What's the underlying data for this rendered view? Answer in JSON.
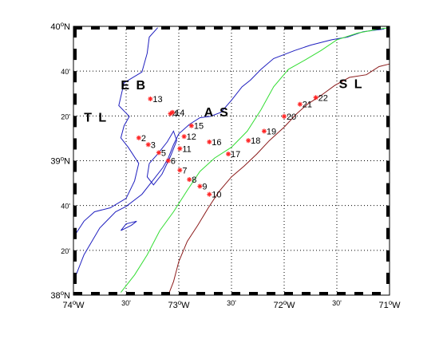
{
  "map": {
    "lon_range": [
      -74,
      -71
    ],
    "lat_range": [
      38,
      40
    ],
    "x_ticks": [
      {
        "lon": -74.0,
        "label": "74",
        "suffix": "W",
        "major": true
      },
      {
        "lon": -73.5,
        "label": "30'",
        "suffix": "",
        "major": false
      },
      {
        "lon": -73.0,
        "label": "73",
        "suffix": "W",
        "major": true
      },
      {
        "lon": -72.5,
        "label": "30'",
        "suffix": "",
        "major": false
      },
      {
        "lon": -72.0,
        "label": "72",
        "suffix": "W",
        "major": true
      },
      {
        "lon": -71.5,
        "label": "30'",
        "suffix": "",
        "major": false
      },
      {
        "lon": -71.0,
        "label": "71",
        "suffix": "W",
        "major": true
      }
    ],
    "y_ticks": [
      {
        "lat": 38.0,
        "label": "38",
        "suffix": "N",
        "major": true
      },
      {
        "lat": 38.3333,
        "label": "20'",
        "suffix": "",
        "major": false
      },
      {
        "lat": 38.6667,
        "label": "40'",
        "suffix": "",
        "major": false
      },
      {
        "lat": 39.0,
        "label": "39",
        "suffix": "N",
        "major": true
      },
      {
        "lat": 39.3333,
        "label": "20'",
        "suffix": "",
        "major": false
      },
      {
        "lat": 39.6667,
        "label": "40'",
        "suffix": "",
        "major": false
      },
      {
        "lat": 40.0,
        "label": "40",
        "suffix": "N",
        "major": true
      }
    ],
    "region_labels": [
      {
        "text": "E B",
        "lon": -73.55,
        "lat": 39.53
      },
      {
        "text": "T L",
        "lon": -73.9,
        "lat": 39.29
      },
      {
        "text": "A S",
        "lon": -72.76,
        "lat": 39.33
      },
      {
        "text": "S L",
        "lon": -71.48,
        "lat": 39.54
      }
    ],
    "stations": [
      {
        "id": "2",
        "lon": -73.38,
        "lat": 39.17
      },
      {
        "id": "3",
        "lon": -73.29,
        "lat": 39.12
      },
      {
        "id": "4",
        "lon": -73.08,
        "lat": 39.35
      },
      {
        "id": "5",
        "lon": -73.19,
        "lat": 39.06
      },
      {
        "id": "6",
        "lon": -73.1,
        "lat": 39.0
      },
      {
        "id": "7",
        "lon": -72.99,
        "lat": 38.93
      },
      {
        "id": "8",
        "lon": -72.9,
        "lat": 38.86
      },
      {
        "id": "9",
        "lon": -72.8,
        "lat": 38.81
      },
      {
        "id": "10",
        "lon": -72.71,
        "lat": 38.75
      },
      {
        "id": "11",
        "lon": -72.99,
        "lat": 39.09
      },
      {
        "id": "12",
        "lon": -72.95,
        "lat": 39.18
      },
      {
        "id": "13",
        "lon": -73.27,
        "lat": 39.46
      },
      {
        "id": "14",
        "lon": -73.06,
        "lat": 39.36
      },
      {
        "id": "15",
        "lon": -72.88,
        "lat": 39.26
      },
      {
        "id": "16",
        "lon": -72.71,
        "lat": 39.14
      },
      {
        "id": "17",
        "lon": -72.53,
        "lat": 39.05
      },
      {
        "id": "18",
        "lon": -72.34,
        "lat": 39.15
      },
      {
        "id": "19",
        "lon": -72.19,
        "lat": 39.22
      },
      {
        "id": "20",
        "lon": -72.0,
        "lat": 39.33
      },
      {
        "id": "21",
        "lon": -71.85,
        "lat": 39.42
      },
      {
        "id": "22",
        "lon": -71.7,
        "lat": 39.47
      }
    ],
    "blue_contour": [
      [
        -74.0,
        38.43
      ],
      [
        -73.9,
        38.55
      ],
      [
        -73.8,
        38.62
      ],
      [
        -73.65,
        38.65
      ],
      [
        -73.5,
        38.72
      ],
      [
        -73.42,
        38.85
      ],
      [
        -73.38,
        38.98
      ],
      [
        -73.48,
        39.1
      ],
      [
        -73.55,
        39.17
      ],
      [
        -73.52,
        39.26
      ],
      [
        -73.47,
        39.33
      ],
      [
        -73.57,
        39.41
      ],
      [
        -73.52,
        39.58
      ],
      [
        -73.35,
        39.66
      ],
      [
        -73.3,
        39.8
      ],
      [
        -73.28,
        39.92
      ],
      [
        -73.2,
        39.99
      ]
    ],
    "blue_contour_2": [
      [
        -73.1,
        39.02
      ],
      [
        -73.05,
        39.12
      ],
      [
        -73.0,
        39.2
      ],
      [
        -72.9,
        39.27
      ],
      [
        -72.8,
        39.32
      ],
      [
        -72.7,
        39.33
      ],
      [
        -72.6,
        39.36
      ],
      [
        -72.5,
        39.45
      ],
      [
        -72.4,
        39.55
      ],
      [
        -72.32,
        39.6
      ],
      [
        -72.22,
        39.68
      ],
      [
        -72.1,
        39.76
      ],
      [
        -71.9,
        39.82
      ],
      [
        -71.75,
        39.86
      ],
      [
        -71.55,
        39.9
      ],
      [
        -71.4,
        39.92
      ],
      [
        -71.25,
        39.96
      ],
      [
        -71.05,
        39.98
      ]
    ],
    "blue_loop": [
      [
        -73.28,
        38.98
      ],
      [
        -73.2,
        39.05
      ],
      [
        -73.11,
        39.14
      ],
      [
        -73.05,
        39.22
      ],
      [
        -73.02,
        39.15
      ],
      [
        -73.08,
        39.03
      ],
      [
        -73.16,
        38.9
      ],
      [
        -73.24,
        38.82
      ],
      [
        -73.3,
        38.88
      ],
      [
        -73.28,
        38.98
      ]
    ],
    "blue_small": [
      [
        -73.55,
        38.48
      ],
      [
        -73.45,
        38.52
      ],
      [
        -73.4,
        38.55
      ],
      [
        -73.5,
        38.53
      ],
      [
        -73.55,
        38.48
      ]
    ],
    "blue_lower": [
      [
        -74.0,
        38.1
      ],
      [
        -73.9,
        38.3
      ],
      [
        -73.75,
        38.5
      ],
      [
        -73.6,
        38.62
      ],
      [
        -73.5,
        38.66
      ],
      [
        -73.35,
        38.75
      ],
      [
        -73.25,
        38.85
      ],
      [
        -73.15,
        38.95
      ],
      [
        -73.1,
        39.02
      ]
    ],
    "green_contour": [
      [
        -73.55,
        38.02
      ],
      [
        -73.42,
        38.15
      ],
      [
        -73.3,
        38.3
      ],
      [
        -73.18,
        38.48
      ],
      [
        -73.05,
        38.62
      ],
      [
        -72.92,
        38.78
      ],
      [
        -72.8,
        38.92
      ],
      [
        -72.66,
        39.02
      ],
      [
        -72.5,
        39.1
      ],
      [
        -72.35,
        39.22
      ],
      [
        -72.22,
        39.38
      ],
      [
        -72.1,
        39.55
      ],
      [
        -71.96,
        39.68
      ],
      [
        -71.8,
        39.75
      ],
      [
        -71.65,
        39.82
      ],
      [
        -71.5,
        39.9
      ],
      [
        -71.3,
        39.95
      ],
      [
        -71.1,
        39.98
      ],
      [
        -71.0,
        39.99
      ]
    ],
    "red_contour": [
      [
        -73.1,
        38.0
      ],
      [
        -73.05,
        38.1
      ],
      [
        -73.0,
        38.25
      ],
      [
        -72.92,
        38.4
      ],
      [
        -72.82,
        38.52
      ],
      [
        -72.72,
        38.65
      ],
      [
        -72.62,
        38.77
      ],
      [
        -72.5,
        38.88
      ],
      [
        -72.38,
        38.96
      ],
      [
        -72.26,
        39.05
      ],
      [
        -72.14,
        39.15
      ],
      [
        -72.0,
        39.25
      ],
      [
        -71.88,
        39.35
      ],
      [
        -71.78,
        39.42
      ],
      [
        -71.66,
        39.48
      ],
      [
        -71.52,
        39.56
      ],
      [
        -71.38,
        39.62
      ],
      [
        -71.22,
        39.64
      ],
      [
        -71.1,
        39.7
      ],
      [
        -71.0,
        39.72
      ]
    ],
    "colors": {
      "blue": "#1f1fbf",
      "green": "#33dd33",
      "red": "#8b1a1a",
      "station": "#ff2222",
      "grid": "#000000"
    }
  }
}
